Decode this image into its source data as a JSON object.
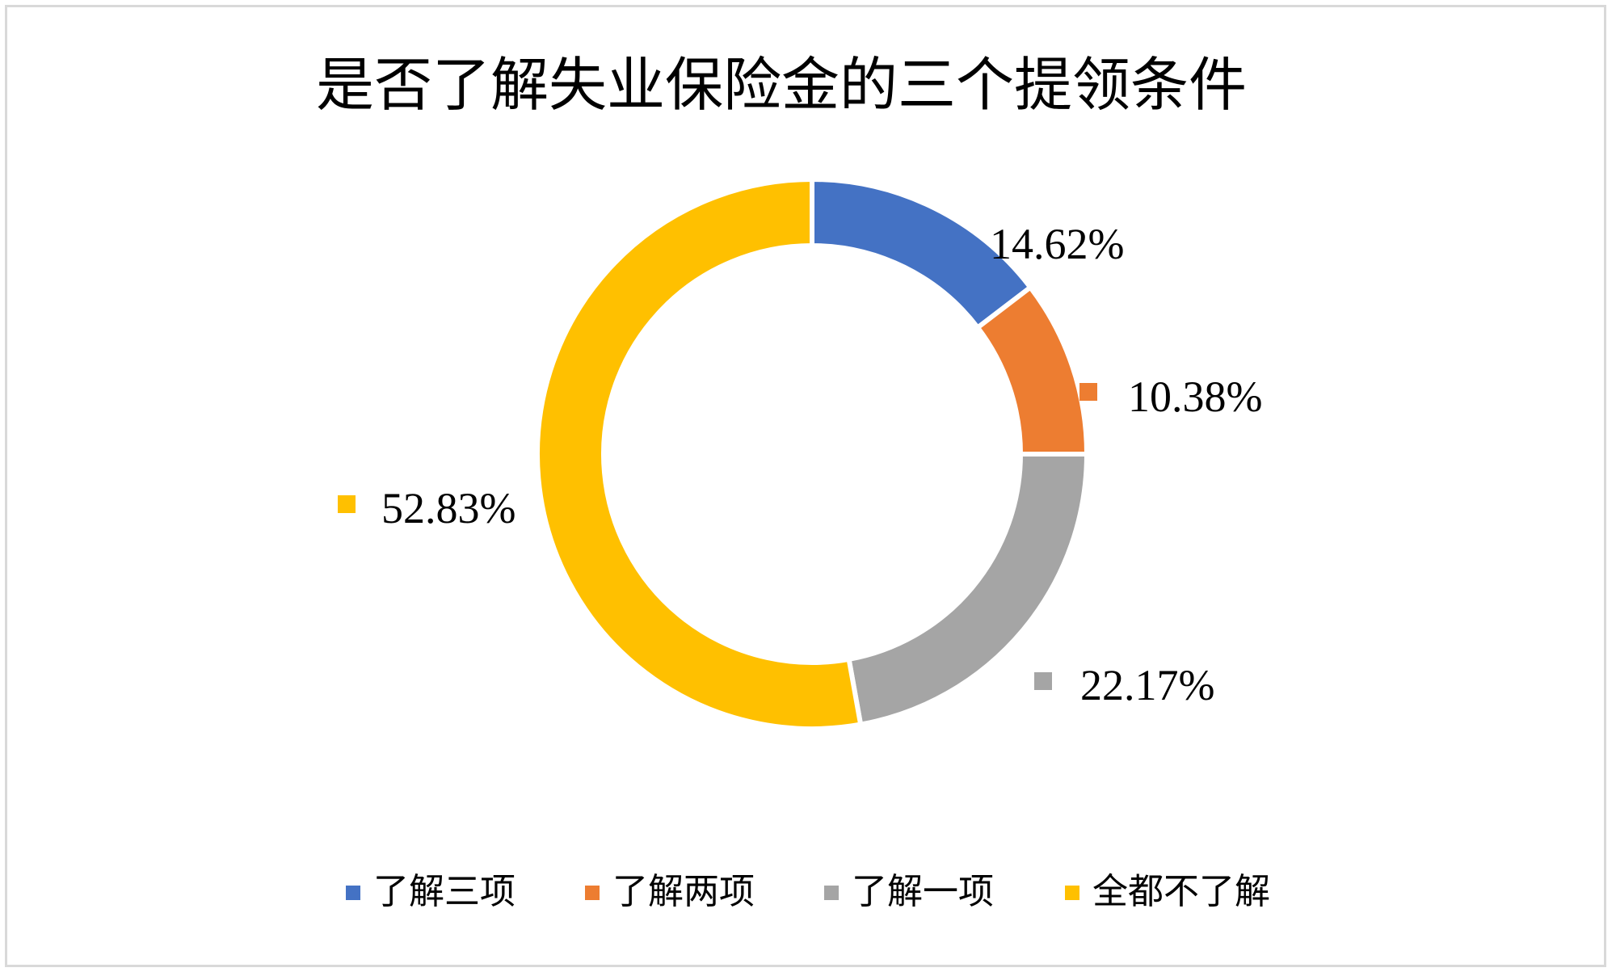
{
  "chart_data": {
    "type": "pie",
    "subtype": "doughnut",
    "title": "是否了解失业保险金的三个提领条件",
    "categories": [
      "了解三项",
      "了解两项",
      "了解一项",
      "全都不了解"
    ],
    "values": [
      14.62,
      10.38,
      22.17,
      52.83
    ],
    "data_labels": [
      "14.62%",
      "10.38%",
      "22.17%",
      "52.83%"
    ],
    "colors": [
      "#4472C4",
      "#ED7D31",
      "#A5A5A5",
      "#FFC000"
    ],
    "legend_position": "bottom",
    "start_angle_deg": 0,
    "direction": "clockwise"
  }
}
